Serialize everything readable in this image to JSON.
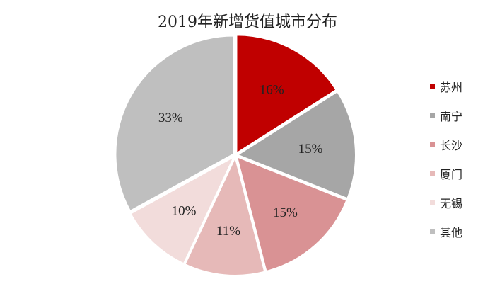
{
  "chart_data": {
    "type": "pie",
    "title": "2019年新增货值城市分布",
    "categories": [
      "苏州",
      "南宁",
      "长沙",
      "厦门",
      "无锡",
      "其他"
    ],
    "values": [
      16,
      15,
      15,
      11,
      10,
      33
    ],
    "labels": [
      "16%",
      "15%",
      "15%",
      "11%",
      "10%",
      "33%"
    ],
    "colors": [
      "#c00000",
      "#a6a6a6",
      "#d99294",
      "#e6b9b8",
      "#f2dcdb",
      "#bfbfbf"
    ],
    "legend_position": "right"
  }
}
